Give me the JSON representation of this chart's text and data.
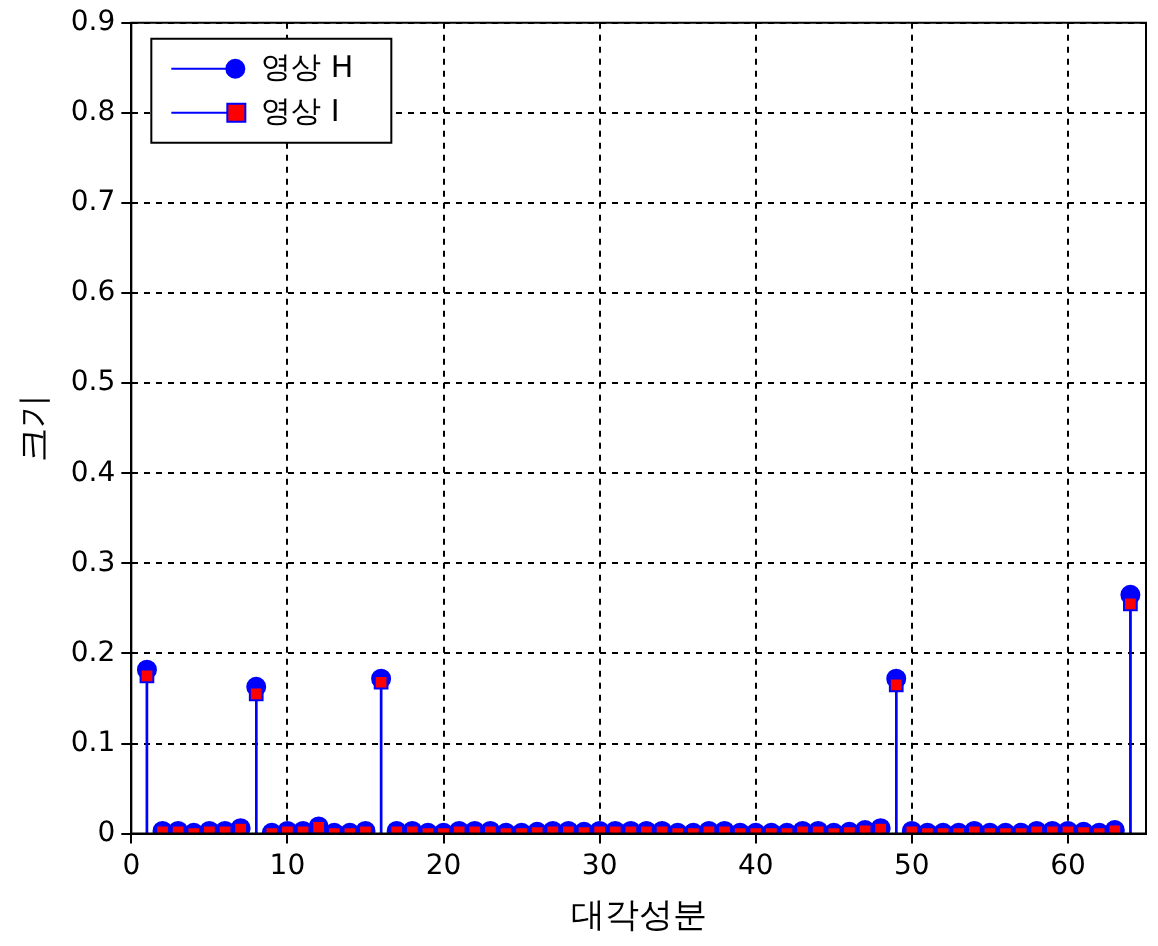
{
  "chart_data": {
    "type": "lollipop",
    "xlabel": "대각성분",
    "ylabel": "크기",
    "x": [
      1,
      2,
      3,
      4,
      5,
      6,
      7,
      8,
      9,
      10,
      11,
      12,
      13,
      14,
      15,
      16,
      17,
      18,
      19,
      20,
      21,
      22,
      23,
      24,
      25,
      26,
      27,
      28,
      29,
      30,
      31,
      32,
      33,
      34,
      35,
      36,
      37,
      38,
      39,
      40,
      41,
      42,
      43,
      44,
      45,
      46,
      47,
      48,
      49,
      50,
      51,
      52,
      53,
      54,
      55,
      56,
      57,
      58,
      59,
      60,
      61,
      62,
      63,
      64
    ],
    "series": [
      {
        "name": "영상 H",
        "color": "#0000ff",
        "marker": "circle",
        "values": [
          0.182,
          0.003,
          0.003,
          0.001,
          0.003,
          0.003,
          0.006,
          0.163,
          0.001,
          0.003,
          0.003,
          0.008,
          0.001,
          0.001,
          0.003,
          0.172,
          0.003,
          0.003,
          0.001,
          0.001,
          0.003,
          0.003,
          0.003,
          0.001,
          0.001,
          0.002,
          0.003,
          0.003,
          0.002,
          0.003,
          0.003,
          0.003,
          0.003,
          0.003,
          0.001,
          0.001,
          0.003,
          0.003,
          0.001,
          0.001,
          0.001,
          0.001,
          0.003,
          0.003,
          0.001,
          0.002,
          0.004,
          0.006,
          0.172,
          0.003,
          0.001,
          0.001,
          0.001,
          0.003,
          0.001,
          0.001,
          0.001,
          0.003,
          0.003,
          0.003,
          0.002,
          0.001,
          0.004,
          0.265
        ]
      },
      {
        "name": "영상 I",
        "color": "#ff0000",
        "marker": "square",
        "values": [
          0.175,
          0.002,
          0.002,
          0.0,
          0.002,
          0.002,
          0.005,
          0.155,
          0.0,
          0.002,
          0.002,
          0.007,
          0.0,
          0.0,
          0.002,
          0.168,
          0.002,
          0.002,
          0.0,
          0.0,
          0.002,
          0.002,
          0.002,
          0.0,
          0.0,
          0.001,
          0.002,
          0.002,
          0.001,
          0.002,
          0.002,
          0.002,
          0.002,
          0.002,
          0.0,
          0.0,
          0.002,
          0.002,
          0.0,
          0.0,
          0.0,
          0.0,
          0.002,
          0.002,
          0.0,
          0.001,
          0.003,
          0.005,
          0.165,
          0.002,
          0.0,
          0.0,
          0.0,
          0.002,
          0.0,
          0.0,
          0.0,
          0.002,
          0.002,
          0.002,
          0.001,
          0.0,
          0.003,
          0.255
        ]
      }
    ],
    "xlim": [
      0,
      65
    ],
    "xticks": [
      0,
      10,
      20,
      30,
      40,
      50,
      60
    ],
    "ylim": [
      0,
      0.9
    ],
    "yticks": [
      0,
      0.1,
      0.2,
      0.3,
      0.4,
      0.5,
      0.6,
      0.7,
      0.8,
      0.9
    ],
    "grid": true,
    "legend": "top left"
  }
}
